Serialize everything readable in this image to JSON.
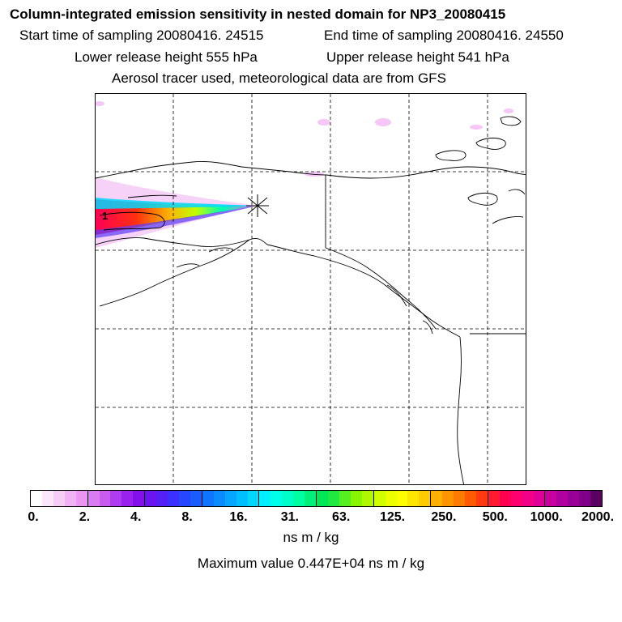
{
  "header": {
    "title": "Column-integrated emission sensitivity in nested domain for NP3_20080415",
    "start_label": "Start time of sampling 20080416. 24515",
    "end_label": "End time of sampling 20080416. 24550",
    "lower_label": "Lower release height  555 hPa",
    "upper_label": "Upper release height  541 hPa",
    "tracer_label": "Aerosol tracer used, meteorological data are from GFS"
  },
  "map": {
    "plume_marker": "1",
    "release_marker": "star-burst",
    "grid_style": "dashed"
  },
  "colorbar": {
    "tick_labels": [
      "0.",
      "2.",
      "4.",
      "8.",
      "16.",
      "31.",
      "63.",
      "125.",
      "250.",
      "500.",
      "1000.",
      "2000."
    ],
    "colors": [
      "#ffffff",
      "#fbe6fb",
      "#f5cdf5",
      "#efb3f5",
      "#e896ef",
      "#d87df0",
      "#c85cf0",
      "#b03cf0",
      "#9a22ee",
      "#8410ea",
      "#6a14f0",
      "#5520f5",
      "#3c30ff",
      "#2646ff",
      "#1a5cff",
      "#0f75ff",
      "#0a8cff",
      "#06a5ff",
      "#00bfff",
      "#00d8ff",
      "#00f0ff",
      "#00ffe8",
      "#00ffc8",
      "#00ffa0",
      "#00f07a",
      "#00e858",
      "#20e840",
      "#55f020",
      "#88f500",
      "#b0f800",
      "#d0ff00",
      "#ecff00",
      "#ffff00",
      "#ffe600",
      "#ffcc00",
      "#ffb000",
      "#ff9500",
      "#ff7a00",
      "#ff5a00",
      "#ff3a10",
      "#ff1a30",
      "#ff0050",
      "#ff0070",
      "#f20088",
      "#e00098",
      "#c800a0",
      "#b000a0",
      "#980098",
      "#80008a",
      "#5a0060"
    ],
    "units": "ns m / kg",
    "max_label": "Maximum value  0.447E+04 ns m / kg"
  }
}
